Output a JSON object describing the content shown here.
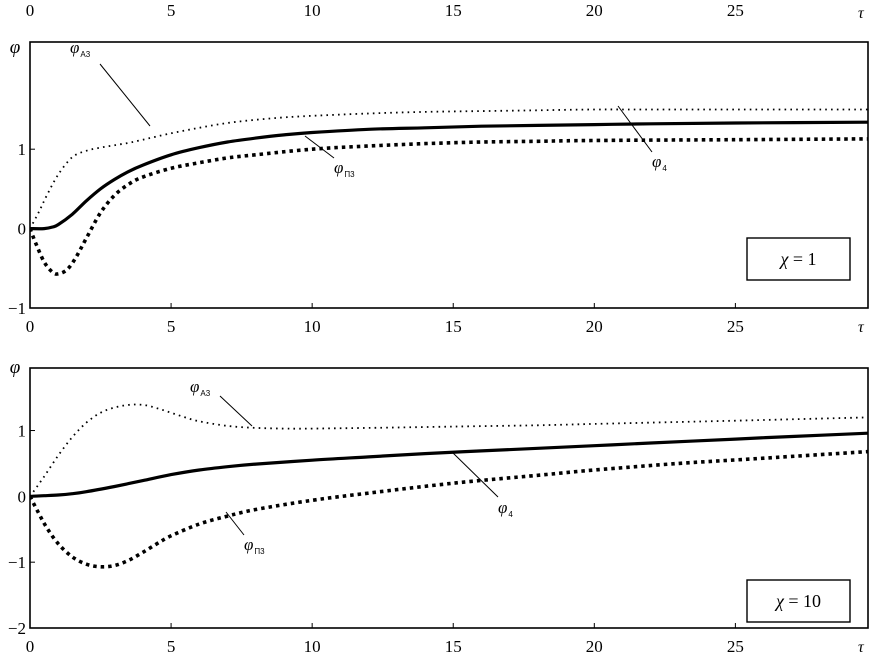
{
  "top_axis": {
    "ticks": [
      "0",
      "5",
      "10",
      "15",
      "20",
      "25"
    ],
    "label": "τ"
  },
  "chart_data": [
    {
      "type": "line",
      "ylabel": "φ",
      "xlabel": "τ",
      "xlim": [
        0,
        29.7
      ],
      "ylim": [
        -1,
        2.35
      ],
      "yticks": [
        "−1",
        "0",
        "1"
      ],
      "xticks": [
        "0",
        "5",
        "10",
        "15",
        "20",
        "25"
      ],
      "box_label": {
        "symbol": "χ",
        "text": " = 1"
      },
      "series": [
        {
          "name": "φA3",
          "label_main": "φ",
          "label_sub": "A3",
          "style": "dotted",
          "x": [
            0,
            0.3,
            0.6,
            1,
            1.5,
            2,
            2.5,
            3,
            3.5,
            4,
            5,
            6,
            7,
            8,
            9,
            10,
            12,
            14,
            16,
            18,
            20,
            22,
            25,
            29.7
          ],
          "y": [
            0,
            0.2,
            0.42,
            0.68,
            0.9,
            0.98,
            1.02,
            1.05,
            1.08,
            1.12,
            1.2,
            1.27,
            1.33,
            1.37,
            1.4,
            1.42,
            1.45,
            1.47,
            1.48,
            1.49,
            1.5,
            1.5,
            1.5,
            1.5
          ]
        },
        {
          "name": "φ4",
          "label_main": "φ",
          "label_sub": "4",
          "style": "solid",
          "x": [
            0,
            0.5,
            0.8,
            1,
            1.5,
            2,
            2.5,
            3,
            3.5,
            4,
            5,
            6,
            7,
            8,
            9,
            10,
            12,
            14,
            16,
            18,
            20,
            22,
            25,
            29.7
          ],
          "y": [
            0,
            0,
            0.02,
            0.05,
            0.18,
            0.35,
            0.5,
            0.62,
            0.72,
            0.8,
            0.93,
            1.02,
            1.09,
            1.14,
            1.18,
            1.21,
            1.25,
            1.27,
            1.29,
            1.3,
            1.31,
            1.32,
            1.33,
            1.34
          ]
        },
        {
          "name": "φП3",
          "label_main": "φ",
          "label_sub": "П3",
          "style": "dashed",
          "x": [
            0,
            0.2,
            0.5,
            0.8,
            1,
            1.3,
            1.6,
            2,
            2.5,
            3,
            3.5,
            4,
            5,
            6,
            7,
            8,
            10,
            12,
            14,
            16,
            18,
            20,
            25,
            29.7
          ],
          "y": [
            0,
            -0.18,
            -0.42,
            -0.55,
            -0.57,
            -0.52,
            -0.38,
            -0.12,
            0.2,
            0.42,
            0.56,
            0.65,
            0.76,
            0.83,
            0.89,
            0.93,
            1.0,
            1.04,
            1.07,
            1.09,
            1.1,
            1.11,
            1.12,
            1.13
          ]
        }
      ]
    },
    {
      "type": "line",
      "ylabel": "φ",
      "xlabel": "τ",
      "xlim": [
        0,
        29.7
      ],
      "ylim": [
        -2,
        1.95
      ],
      "yticks": [
        "−2",
        "−1",
        "0",
        "1"
      ],
      "xticks": [
        "0",
        "5",
        "10",
        "15",
        "20",
        "25"
      ],
      "box_label": {
        "symbol": "χ",
        "text": " = 10"
      },
      "series": [
        {
          "name": "φA3",
          "label_main": "φ",
          "label_sub": "A3",
          "style": "dotted",
          "x": [
            0,
            0.5,
            1,
            1.5,
            2,
            2.5,
            3,
            3.5,
            4,
            4.5,
            5,
            5.5,
            6,
            7,
            8,
            9,
            10,
            12,
            15,
            18,
            20,
            23,
            26,
            29.7
          ],
          "y": [
            0,
            0.3,
            0.62,
            0.9,
            1.12,
            1.27,
            1.35,
            1.39,
            1.39,
            1.34,
            1.27,
            1.2,
            1.14,
            1.07,
            1.04,
            1.03,
            1.03,
            1.04,
            1.06,
            1.08,
            1.1,
            1.13,
            1.16,
            1.2
          ]
        },
        {
          "name": "φ4",
          "label_main": "φ",
          "label_sub": "4",
          "style": "solid",
          "x": [
            0,
            0.5,
            1,
            1.5,
            2,
            3,
            4,
            5,
            6,
            7,
            8,
            10,
            12,
            14,
            16,
            18,
            20,
            22,
            25,
            27,
            29.7
          ],
          "y": [
            0,
            0.01,
            0.02,
            0.04,
            0.07,
            0.15,
            0.24,
            0.33,
            0.4,
            0.45,
            0.49,
            0.55,
            0.6,
            0.65,
            0.69,
            0.73,
            0.77,
            0.81,
            0.87,
            0.91,
            0.96
          ]
        },
        {
          "name": "φП3",
          "label_main": "φ",
          "label_sub": "П3",
          "style": "dashed",
          "x": [
            0,
            0.3,
            0.6,
            1,
            1.5,
            2,
            2.5,
            3,
            3.5,
            4,
            4.5,
            5,
            6,
            7,
            8,
            10,
            12,
            15,
            18,
            20,
            23,
            26,
            29.7
          ],
          "y": [
            0,
            -0.25,
            -0.48,
            -0.72,
            -0.92,
            -1.03,
            -1.07,
            -1.05,
            -0.97,
            -0.85,
            -0.72,
            -0.6,
            -0.42,
            -0.3,
            -0.2,
            -0.06,
            0.05,
            0.2,
            0.32,
            0.4,
            0.5,
            0.58,
            0.68
          ]
        }
      ]
    }
  ]
}
